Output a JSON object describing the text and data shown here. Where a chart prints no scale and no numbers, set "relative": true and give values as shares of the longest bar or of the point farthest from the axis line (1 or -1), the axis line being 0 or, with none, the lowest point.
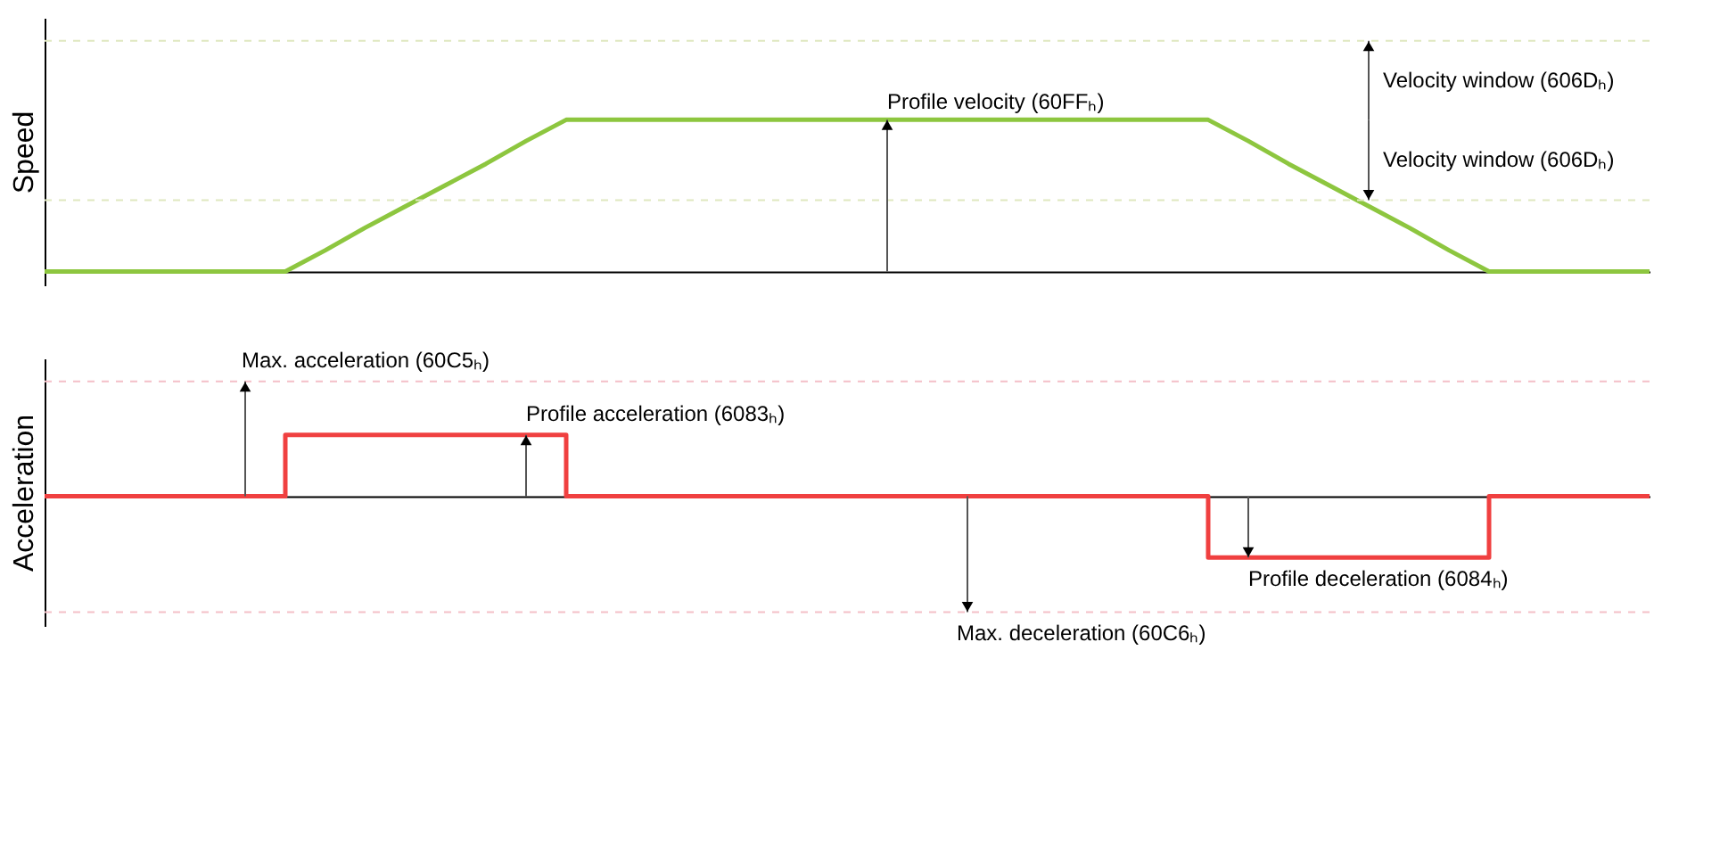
{
  "chart_data": [
    {
      "type": "line",
      "ylabel": "Speed",
      "relative": true,
      "categories": [
        null,
        null,
        null,
        null,
        null,
        null,
        null,
        null,
        null,
        null,
        null,
        null,
        null,
        null,
        null,
        null,
        null,
        null,
        null,
        null,
        null,
        null,
        null,
        null,
        null,
        null,
        null,
        null,
        null,
        null,
        null,
        null,
        null,
        null,
        null,
        null,
        null,
        null,
        null,
        null,
        null
      ],
      "series": [
        {
          "color": "#8dc63f",
          "values": [
            0,
            0,
            0,
            0,
            0,
            0,
            0,
            0.14,
            0.29,
            0.43,
            0.57,
            0.71,
            0.86,
            1,
            1,
            1,
            1,
            1,
            1,
            1,
            1,
            1,
            1,
            1,
            1,
            1,
            1,
            1,
            1,
            1,
            0.86,
            0.71,
            0.57,
            0.43,
            0.29,
            0.14,
            0,
            0,
            0,
            0,
            0
          ]
        }
      ],
      "ref_lines": [
        {
          "axis": "y",
          "value": 1.52,
          "color": "#dfe8c0",
          "line_style": "dashed"
        },
        {
          "axis": "y",
          "value": 0.47,
          "color": "#dfe8c0",
          "line_style": "dashed"
        }
      ],
      "annotations": [
        {
          "text": "Profile velocity (60FFₕ)",
          "y": 1
        },
        {
          "text": "Velocity window (606Dₕ)",
          "y": 1.52
        },
        {
          "text": "Velocity window (606Dₕ)",
          "y": 0.47
        }
      ],
      "legend": false,
      "grid": false,
      "marker": "none",
      "line_style": "solid"
    },
    {
      "type": "step",
      "ylabel": "Acceleration",
      "relative": true,
      "categories": [
        null,
        null,
        null,
        null,
        null,
        null,
        null,
        null,
        null,
        null,
        null,
        null,
        null,
        null,
        null,
        null,
        null,
        null,
        null,
        null,
        null,
        null,
        null,
        null,
        null,
        null,
        null,
        null,
        null,
        null,
        null,
        null,
        null,
        null,
        null,
        null,
        null,
        null,
        null,
        null,
        null
      ],
      "series": [
        {
          "color": "#f04040",
          "values": [
            0,
            0,
            0,
            0,
            0,
            0,
            1,
            1,
            1,
            1,
            1,
            1,
            1,
            0,
            0,
            0,
            0,
            0,
            0,
            0,
            0,
            0,
            0,
            0,
            0,
            0,
            0,
            0,
            0,
            -1,
            -1,
            -1,
            -1,
            -1,
            -1,
            -1,
            0,
            0,
            0,
            0,
            0
          ]
        }
      ],
      "ref_lines": [
        {
          "axis": "y",
          "value": 1.87,
          "color": "#f4c0c8",
          "line_style": "dashed"
        },
        {
          "axis": "y",
          "value": -1.89,
          "color": "#f4c0c8",
          "line_style": "dashed"
        }
      ],
      "annotations": [
        {
          "text": "Max. acceleration (60C5ₕ)",
          "y": 1.87
        },
        "Profile acceleration (6083ₕ)",
        {
          "text": "Max. deceleration (60C6ₕ)",
          "y": -1.89
        },
        {
          "text": "Profile deceleration (6084ₕ)",
          "y": -1
        }
      ],
      "legend": false,
      "grid": false,
      "marker": "none",
      "line_style": "solid"
    }
  ]
}
